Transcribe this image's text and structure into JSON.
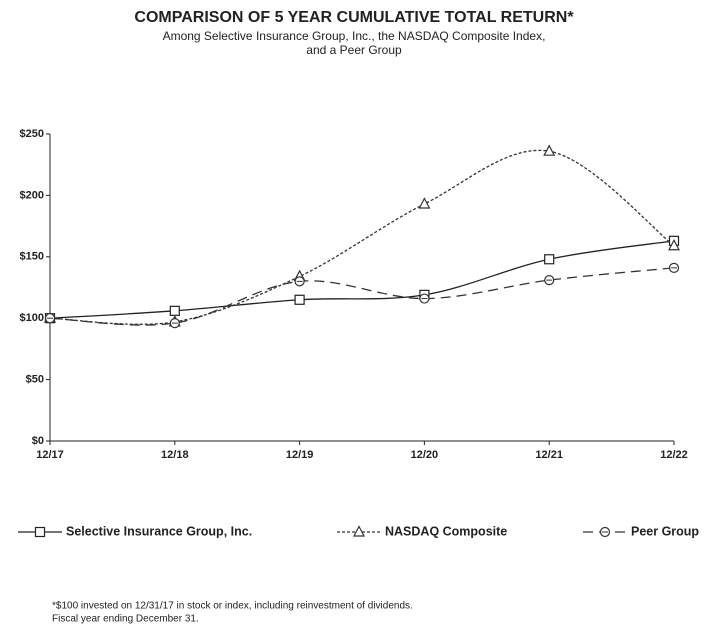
{
  "chart_data": {
    "type": "line",
    "title": "COMPARISON OF 5 YEAR CUMULATIVE TOTAL RETURN*",
    "subtitle": [
      "Among Selective Insurance Group, Inc., the NASDAQ Composite Index,",
      "and a Peer Group"
    ],
    "categories": [
      "12/17",
      "12/18",
      "12/19",
      "12/20",
      "12/21",
      "12/22"
    ],
    "series": [
      {
        "name": "Selective Insurance Group, Inc.",
        "color": "#222222",
        "dash": "solid",
        "marker": "square",
        "values": [
          100,
          106,
          115,
          119,
          148,
          163
        ]
      },
      {
        "name": "NASDAQ Composite",
        "color": "#333333",
        "dash": "dotted",
        "marker": "triangle",
        "values": [
          100,
          97,
          134,
          193,
          236,
          159
        ]
      },
      {
        "name": "Peer Group",
        "color": "#333333",
        "dash": "dashed",
        "marker": "circle",
        "values": [
          100,
          96,
          130,
          116,
          131,
          141
        ]
      }
    ],
    "ylim": [
      0,
      250
    ],
    "yticks": [
      {
        "value": 0,
        "label": "$0"
      },
      {
        "value": 50,
        "label": "$50"
      },
      {
        "value": 100,
        "label": "$100"
      },
      {
        "value": 150,
        "label": "$150"
      },
      {
        "value": 200,
        "label": "$200"
      },
      {
        "value": 250,
        "label": "$250"
      }
    ],
    "grid": false,
    "legend": "bottom",
    "footnotes": [
      "*$100 invested on 12/31/17 in stock or index, including reinvestment of dividends.",
      "Fiscal year ending December 31."
    ]
  }
}
